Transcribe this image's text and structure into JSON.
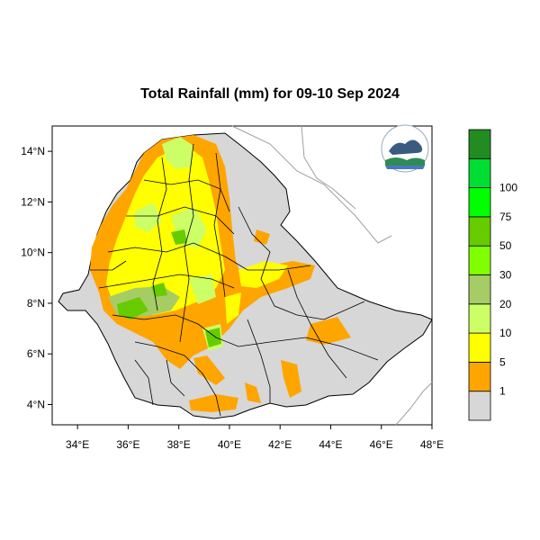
{
  "title": "Total Rainfall (mm) for 09-10 Sep 2024",
  "map": {
    "lon_range": [
      33,
      48
    ],
    "lat_range": [
      3.2,
      15
    ],
    "x_ticks": [
      {
        "value": 34,
        "label": "34°E"
      },
      {
        "value": 36,
        "label": "36°E"
      },
      {
        "value": 38,
        "label": "38°E"
      },
      {
        "value": 40,
        "label": "40°E"
      },
      {
        "value": 42,
        "label": "42°E"
      },
      {
        "value": 44,
        "label": "44°E"
      },
      {
        "value": 46,
        "label": "46°E"
      },
      {
        "value": 48,
        "label": "48°E"
      }
    ],
    "y_ticks": [
      {
        "value": 14,
        "label": "14°N"
      },
      {
        "value": 12,
        "label": "12°N"
      },
      {
        "value": 10,
        "label": "10°N"
      },
      {
        "value": 8,
        "label": "8°N"
      },
      {
        "value": 6,
        "label": "6°N"
      },
      {
        "value": 4,
        "label": "4°N"
      }
    ]
  },
  "legend": {
    "bins": [
      {
        "color": "#d7d7d7",
        "label": "1"
      },
      {
        "color": "#ffa500",
        "label": "5"
      },
      {
        "color": "#ffff00",
        "label": "10"
      },
      {
        "color": "#ccff66",
        "label": "20"
      },
      {
        "color": "#a6cc66",
        "label": "30"
      },
      {
        "color": "#80ff00",
        "label": "50"
      },
      {
        "color": "#66cc00",
        "label": "75"
      },
      {
        "color": "#00ff00",
        "label": "100"
      },
      {
        "color": "#00dd33",
        "label": ""
      },
      {
        "color": "#228b22",
        "label": ""
      }
    ]
  }
}
